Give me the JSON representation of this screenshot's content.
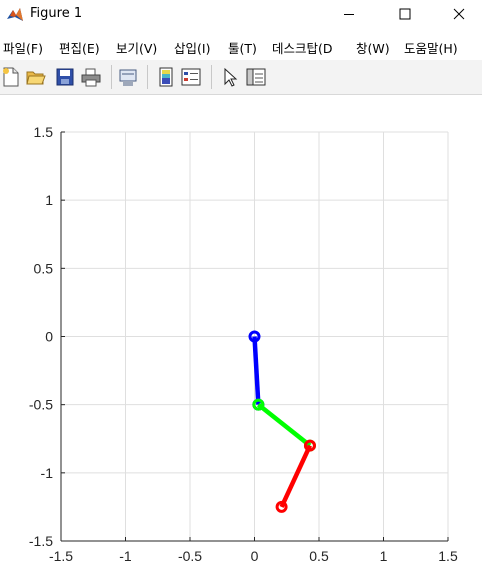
{
  "window": {
    "title": "Figure 1",
    "app_icon": "matlab-icon"
  },
  "controls": {
    "minimize_icon": "minimize-icon",
    "maximize_icon": "maximize-icon",
    "close_icon": "close-icon"
  },
  "menu": {
    "items": [
      {
        "label": "파일(F)"
      },
      {
        "label": "편집(E)"
      },
      {
        "label": "보기(V)"
      },
      {
        "label": "삽입(I)"
      },
      {
        "label": "툴(T)"
      },
      {
        "label": "데스크탑(D"
      },
      {
        "label": "창(W)"
      },
      {
        "label": "도움말(H)"
      }
    ]
  },
  "toolbar": {
    "buttons": [
      {
        "icon": "new-figure-icon"
      },
      {
        "icon": "open-file-icon"
      },
      {
        "icon": "save-icon"
      },
      {
        "icon": "print-icon"
      },
      {
        "icon": "link-plot-icon"
      },
      {
        "icon": "insert-colorbar-icon"
      },
      {
        "icon": "insert-legend-icon"
      },
      {
        "icon": "edit-plot-arrow-icon"
      },
      {
        "icon": "property-inspector-icon"
      }
    ]
  },
  "chart_data": {
    "type": "line",
    "xlim": [
      -1.5,
      1.5
    ],
    "ylim": [
      -1.5,
      1.5
    ],
    "x_ticks": [
      -1.5,
      -1,
      -0.5,
      0,
      0.5,
      1,
      1.5
    ],
    "y_ticks": [
      -1.5,
      -1,
      -0.5,
      0,
      0.5,
      1,
      1.5
    ],
    "x_tick_labels": [
      "-1.5",
      "-1",
      "-0.5",
      "0",
      "0.5",
      "1",
      "1.5"
    ],
    "y_tick_labels": [
      "-1.5",
      "-1",
      "-0.5",
      "0",
      "0.5",
      "1",
      "1.5"
    ],
    "grid": true,
    "series": [
      {
        "color": "#0000ff",
        "x": [
          0.0,
          0.03
        ],
        "y": [
          0.0,
          -0.5
        ]
      },
      {
        "color": "#00ff00",
        "x": [
          0.03,
          0.43
        ],
        "y": [
          -0.5,
          -0.8
        ]
      },
      {
        "color": "#ff0000",
        "x": [
          0.43,
          0.21
        ],
        "y": [
          -0.8,
          -1.25
        ]
      }
    ]
  }
}
